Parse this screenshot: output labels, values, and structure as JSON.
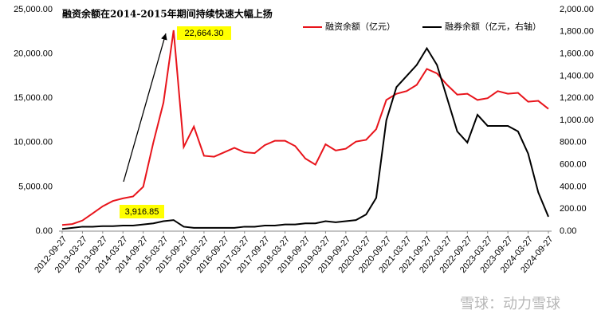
{
  "chart_data": {
    "type": "line",
    "annotations": [
      "融资余额在2014-2015年期间持续快速大幅上扬",
      "22,664.30",
      "3,916.85"
    ],
    "watermark": "雪球：动力雪球",
    "categories": [
      "2012-09-27",
      null,
      "2013-03-27",
      null,
      "2013-09-27",
      null,
      "2014-03-27",
      null,
      "2014-09-27",
      null,
      "2015-03-27",
      null,
      "2015-09-27",
      null,
      "2016-03-27",
      null,
      "2016-09-27",
      null,
      "2017-03-27",
      null,
      "2017-09-27",
      null,
      "2018-03-27",
      null,
      "2018-09-27",
      null,
      "2019-03-27",
      null,
      "2019-09-27",
      null,
      "2020-03-27",
      null,
      "2020-09-27",
      null,
      "2021-03-27",
      null,
      "2021-09-27",
      null,
      "2022-03-27",
      null,
      "2022-09-27",
      null,
      "2023-03-27",
      null,
      "2023-09-27",
      null,
      "2024-03-27",
      null,
      "2024-09-27"
    ],
    "series": [
      {
        "name": "融资余额（亿元）",
        "color": "#e8141b",
        "values": [
          700,
          800,
          1200,
          2000,
          2800,
          3400,
          3700,
          3916.85,
          5000,
          10000,
          14500,
          22664.3,
          9500,
          11800,
          8500,
          8400,
          8900,
          9400,
          8900,
          8800,
          9700,
          10200,
          10200,
          9600,
          8200,
          7500,
          9800,
          9100,
          9300,
          10100,
          10300,
          11500,
          14800,
          15500,
          15800,
          16500,
          18300,
          17800,
          16500,
          15400,
          15500,
          14800,
          15000,
          15800,
          15500,
          15600,
          14600,
          14700,
          13800
        ]
      },
      {
        "name": "融券余额（亿元，右轴）",
        "color": "#000000",
        "axis": "y2",
        "values": [
          20,
          30,
          40,
          40,
          45,
          45,
          50,
          50,
          60,
          70,
          90,
          100,
          40,
          30,
          30,
          30,
          30,
          30,
          40,
          40,
          50,
          50,
          60,
          60,
          70,
          70,
          90,
          80,
          90,
          100,
          150,
          300,
          1000,
          1300,
          1400,
          1500,
          1650,
          1500,
          1200,
          900,
          800,
          1050,
          950,
          950,
          950,
          900,
          700,
          350,
          130
        ]
      }
    ],
    "ylim": [
      0,
      25000
    ],
    "yticks": [
      {
        "value": 0,
        "label": "0.00"
      },
      {
        "value": 5000,
        "label": "5,000.00"
      },
      {
        "value": 10000,
        "label": "10,000.00"
      },
      {
        "value": 15000,
        "label": "15,000.00"
      },
      {
        "value": 20000,
        "label": "20,000.00"
      },
      {
        "value": 25000,
        "label": "25,000.00"
      }
    ],
    "y2lim": [
      0,
      2000
    ],
    "y2ticks": [
      {
        "value": 0,
        "label": "0.00"
      },
      {
        "value": 200,
        "label": "200.00"
      },
      {
        "value": 400,
        "label": "400.00"
      },
      {
        "value": 600,
        "label": "600.00"
      },
      {
        "value": 800,
        "label": "800.00"
      },
      {
        "value": 1000,
        "label": "1,000.00"
      },
      {
        "value": 1200,
        "label": "1,200.00"
      },
      {
        "value": 1400,
        "label": "1,400.00"
      },
      {
        "value": 1600,
        "label": "1,600.00"
      },
      {
        "value": 1800,
        "label": "1,800.00"
      },
      {
        "value": 2000,
        "label": "2,000.00"
      }
    ],
    "grid": false
  }
}
